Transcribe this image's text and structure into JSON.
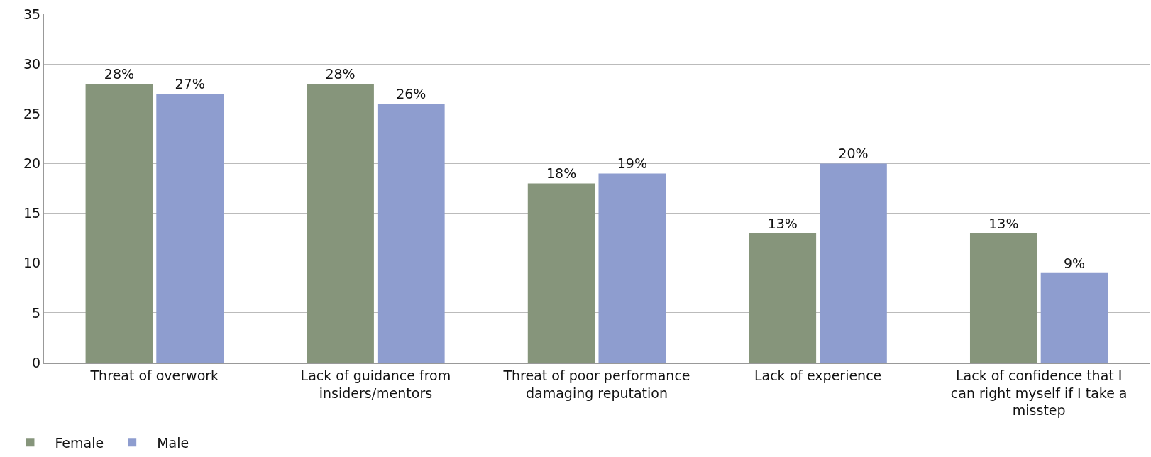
{
  "chart_data": {
    "type": "bar",
    "categories": [
      "Threat of overwork",
      "Lack of guidance from insiders/mentors",
      "Threat of poor performance damaging reputation",
      "Lack of experience",
      "Lack of confidence that I can right myself if I take a misstep"
    ],
    "series": [
      {
        "name": "Female",
        "color": "#86957b",
        "values": [
          28,
          28,
          18,
          13,
          13
        ],
        "value_labels": [
          "28%",
          "28%",
          "18%",
          "13%",
          "13%"
        ]
      },
      {
        "name": "Male",
        "color": "#8e9dcf",
        "values": [
          27,
          26,
          19,
          20,
          9
        ],
        "value_labels": [
          "27%",
          "26%",
          "19%",
          "20%",
          "9%"
        ]
      }
    ],
    "ylim": [
      0,
      35
    ],
    "yticks": [
      0,
      5,
      10,
      15,
      20,
      25,
      30,
      35
    ],
    "grid": "y",
    "legend": "bottom left"
  }
}
